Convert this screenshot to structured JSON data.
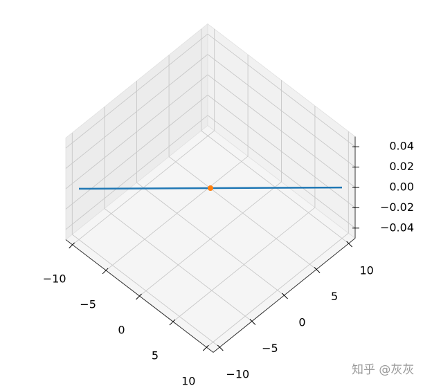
{
  "chart_data": {
    "type": "line3d",
    "xlim": [
      -11,
      11
    ],
    "ylim": [
      -11,
      11
    ],
    "zlim": [
      -0.05,
      0.05
    ],
    "xticks": [
      {
        "value": -10,
        "label": "−10"
      },
      {
        "value": -5,
        "label": "−5"
      },
      0,
      5,
      10
    ],
    "yticks": [
      {
        "value": -10,
        "label": "−10"
      },
      {
        "value": -5,
        "label": "−5"
      },
      0,
      5,
      10
    ],
    "zticks": [
      {
        "value": -0.04,
        "label": "−0.04"
      },
      {
        "value": -0.02,
        "label": "−0.02"
      },
      {
        "value": 0,
        "label": "0.00"
      },
      {
        "value": 0.02,
        "label": "0.02"
      },
      {
        "value": 0.04,
        "label": "0.04"
      }
    ],
    "grid": true,
    "series": [
      {
        "kind": "line",
        "color": "#1f77b4",
        "x": [
          -10,
          10
        ],
        "y": [
          -10,
          10
        ],
        "z": [
          0,
          0
        ]
      },
      {
        "kind": "scatter",
        "color": "#ff7f0e",
        "x": [
          0
        ],
        "y": [
          0
        ],
        "z": [
          0
        ]
      }
    ]
  },
  "watermark": "知乎 @灰灰"
}
